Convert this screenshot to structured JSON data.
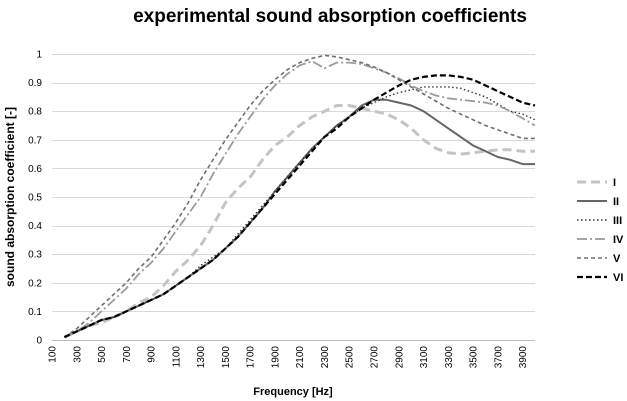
{
  "chart_data": {
    "type": "line",
    "title": "experimental sound absorption coefficients",
    "xlabel": "Frequency [Hz]",
    "ylabel": "sound absorption coefficient [-]",
    "xlim": [
      100,
      4000
    ],
    "ylim": [
      0,
      1
    ],
    "x_ticks": [
      100,
      300,
      500,
      700,
      900,
      1100,
      1300,
      1500,
      1700,
      1900,
      2100,
      2300,
      2500,
      2700,
      2900,
      3100,
      3300,
      3500,
      3700,
      3900
    ],
    "x_tick_labels": [
      "100",
      "300",
      "500",
      "700",
      "900",
      "1100",
      "1300",
      "1500",
      "1700",
      "1900",
      "2100",
      "2300",
      "2500",
      "2700",
      "2900",
      "3100",
      "3300",
      "3500",
      "3700",
      "3900"
    ],
    "y_ticks": [
      0,
      0.1,
      0.2,
      0.3,
      0.4,
      0.5,
      0.6,
      0.7,
      0.8,
      0.9,
      1
    ],
    "y_tick_labels": [
      "0",
      "0.1",
      "0.2",
      "0.3",
      "0.4",
      "0.5",
      "0.6",
      "0.7",
      "0.8",
      "0.9",
      "1"
    ],
    "grid": "horizontal",
    "legend_position": "right",
    "series": [
      {
        "name": "I",
        "color": "#c4c4c4",
        "dash": "9,5",
        "width": 3,
        "points": [
          [
            200,
            0.01
          ],
          [
            300,
            0.03
          ],
          [
            400,
            0.05
          ],
          [
            500,
            0.06
          ],
          [
            600,
            0.08
          ],
          [
            700,
            0.1
          ],
          [
            800,
            0.13
          ],
          [
            900,
            0.15
          ],
          [
            1000,
            0.19
          ],
          [
            1100,
            0.24
          ],
          [
            1200,
            0.28
          ],
          [
            1300,
            0.33
          ],
          [
            1400,
            0.4
          ],
          [
            1500,
            0.48
          ],
          [
            1600,
            0.53
          ],
          [
            1700,
            0.57
          ],
          [
            1800,
            0.63
          ],
          [
            1900,
            0.68
          ],
          [
            2000,
            0.71
          ],
          [
            2100,
            0.75
          ],
          [
            2200,
            0.78
          ],
          [
            2300,
            0.8
          ],
          [
            2400,
            0.82
          ],
          [
            2500,
            0.82
          ],
          [
            2600,
            0.81
          ],
          [
            2700,
            0.8
          ],
          [
            2800,
            0.79
          ],
          [
            2900,
            0.77
          ],
          [
            3000,
            0.74
          ],
          [
            3100,
            0.7
          ],
          [
            3200,
            0.67
          ],
          [
            3300,
            0.655
          ],
          [
            3400,
            0.65
          ],
          [
            3500,
            0.655
          ],
          [
            3600,
            0.66
          ],
          [
            3700,
            0.665
          ],
          [
            3800,
            0.665
          ],
          [
            3900,
            0.66
          ],
          [
            4000,
            0.66
          ]
        ]
      },
      {
        "name": "II",
        "color": "#666666",
        "dash": "",
        "width": 2,
        "points": [
          [
            200,
            0.01
          ],
          [
            300,
            0.03
          ],
          [
            400,
            0.05
          ],
          [
            500,
            0.07
          ],
          [
            600,
            0.08
          ],
          [
            700,
            0.1
          ],
          [
            800,
            0.12
          ],
          [
            900,
            0.14
          ],
          [
            1000,
            0.16
          ],
          [
            1100,
            0.19
          ],
          [
            1200,
            0.22
          ],
          [
            1300,
            0.25
          ],
          [
            1400,
            0.28
          ],
          [
            1500,
            0.32
          ],
          [
            1600,
            0.36
          ],
          [
            1700,
            0.41
          ],
          [
            1800,
            0.46
          ],
          [
            1900,
            0.52
          ],
          [
            2000,
            0.57
          ],
          [
            2100,
            0.62
          ],
          [
            2200,
            0.67
          ],
          [
            2300,
            0.71
          ],
          [
            2400,
            0.75
          ],
          [
            2500,
            0.78
          ],
          [
            2600,
            0.82
          ],
          [
            2700,
            0.84
          ],
          [
            2800,
            0.84
          ],
          [
            2900,
            0.83
          ],
          [
            3000,
            0.82
          ],
          [
            3100,
            0.8
          ],
          [
            3200,
            0.77
          ],
          [
            3300,
            0.74
          ],
          [
            3400,
            0.71
          ],
          [
            3500,
            0.68
          ],
          [
            3600,
            0.66
          ],
          [
            3700,
            0.64
          ],
          [
            3800,
            0.63
          ],
          [
            3900,
            0.615
          ],
          [
            4000,
            0.615
          ]
        ]
      },
      {
        "name": "III",
        "color": "#333333",
        "dash": "1.5,2.5",
        "width": 1.4,
        "points": [
          [
            200,
            0.01
          ],
          [
            300,
            0.03
          ],
          [
            400,
            0.05
          ],
          [
            500,
            0.07
          ],
          [
            600,
            0.08
          ],
          [
            700,
            0.1
          ],
          [
            800,
            0.12
          ],
          [
            900,
            0.14
          ],
          [
            1000,
            0.16
          ],
          [
            1100,
            0.19
          ],
          [
            1200,
            0.22
          ],
          [
            1300,
            0.26
          ],
          [
            1400,
            0.29
          ],
          [
            1500,
            0.32
          ],
          [
            1600,
            0.37
          ],
          [
            1700,
            0.42
          ],
          [
            1800,
            0.47
          ],
          [
            1900,
            0.52
          ],
          [
            2000,
            0.57
          ],
          [
            2100,
            0.62
          ],
          [
            2200,
            0.67
          ],
          [
            2300,
            0.71
          ],
          [
            2400,
            0.75
          ],
          [
            2500,
            0.78
          ],
          [
            2600,
            0.81
          ],
          [
            2700,
            0.83
          ],
          [
            2800,
            0.85
          ],
          [
            2900,
            0.865
          ],
          [
            3000,
            0.875
          ],
          [
            3100,
            0.885
          ],
          [
            3200,
            0.885
          ],
          [
            3300,
            0.885
          ],
          [
            3400,
            0.88
          ],
          [
            3500,
            0.865
          ],
          [
            3600,
            0.85
          ],
          [
            3700,
            0.825
          ],
          [
            3800,
            0.8
          ],
          [
            3900,
            0.79
          ],
          [
            4000,
            0.77
          ]
        ]
      },
      {
        "name": "IV",
        "color": "#9b9b9b",
        "dash": "10,3,2,3",
        "width": 1.8,
        "points": [
          [
            200,
            0.01
          ],
          [
            300,
            0.03
          ],
          [
            400,
            0.06
          ],
          [
            500,
            0.1
          ],
          [
            600,
            0.14
          ],
          [
            700,
            0.18
          ],
          [
            800,
            0.23
          ],
          [
            900,
            0.27
          ],
          [
            1000,
            0.32
          ],
          [
            1100,
            0.38
          ],
          [
            1200,
            0.44
          ],
          [
            1300,
            0.5
          ],
          [
            1400,
            0.58
          ],
          [
            1500,
            0.65
          ],
          [
            1600,
            0.72
          ],
          [
            1700,
            0.78
          ],
          [
            1800,
            0.84
          ],
          [
            1900,
            0.89
          ],
          [
            2000,
            0.93
          ],
          [
            2100,
            0.96
          ],
          [
            2200,
            0.975
          ],
          [
            2300,
            0.95
          ],
          [
            2400,
            0.97
          ],
          [
            2500,
            0.97
          ],
          [
            2600,
            0.965
          ],
          [
            2700,
            0.95
          ],
          [
            2800,
            0.935
          ],
          [
            2900,
            0.915
          ],
          [
            3000,
            0.89
          ],
          [
            3100,
            0.87
          ],
          [
            3200,
            0.855
          ],
          [
            3300,
            0.845
          ],
          [
            3400,
            0.84
          ],
          [
            3500,
            0.835
          ],
          [
            3600,
            0.83
          ],
          [
            3700,
            0.82
          ],
          [
            3800,
            0.8
          ],
          [
            3900,
            0.775
          ],
          [
            4000,
            0.75
          ]
        ]
      },
      {
        "name": "V",
        "color": "#6f6f6f",
        "dash": "4,3",
        "width": 1.6,
        "points": [
          [
            200,
            0.01
          ],
          [
            300,
            0.04
          ],
          [
            400,
            0.08
          ],
          [
            500,
            0.12
          ],
          [
            600,
            0.16
          ],
          [
            700,
            0.2
          ],
          [
            800,
            0.25
          ],
          [
            900,
            0.29
          ],
          [
            1000,
            0.35
          ],
          [
            1100,
            0.41
          ],
          [
            1200,
            0.48
          ],
          [
            1300,
            0.56
          ],
          [
            1400,
            0.63
          ],
          [
            1500,
            0.7
          ],
          [
            1600,
            0.76
          ],
          [
            1700,
            0.82
          ],
          [
            1800,
            0.87
          ],
          [
            1900,
            0.91
          ],
          [
            2000,
            0.945
          ],
          [
            2100,
            0.97
          ],
          [
            2200,
            0.985
          ],
          [
            2300,
            0.995
          ],
          [
            2400,
            0.99
          ],
          [
            2500,
            0.98
          ],
          [
            2600,
            0.97
          ],
          [
            2700,
            0.955
          ],
          [
            2800,
            0.935
          ],
          [
            2900,
            0.91
          ],
          [
            3000,
            0.885
          ],
          [
            3100,
            0.86
          ],
          [
            3200,
            0.835
          ],
          [
            3300,
            0.81
          ],
          [
            3400,
            0.79
          ],
          [
            3500,
            0.77
          ],
          [
            3600,
            0.75
          ],
          [
            3700,
            0.735
          ],
          [
            3800,
            0.72
          ],
          [
            3900,
            0.705
          ],
          [
            4000,
            0.705
          ]
        ]
      },
      {
        "name": "VI",
        "color": "#000000",
        "dash": "6,3",
        "width": 2.2,
        "points": [
          [
            200,
            0.01
          ],
          [
            300,
            0.03
          ],
          [
            400,
            0.05
          ],
          [
            500,
            0.07
          ],
          [
            600,
            0.08
          ],
          [
            700,
            0.1
          ],
          [
            800,
            0.12
          ],
          [
            900,
            0.14
          ],
          [
            1000,
            0.16
          ],
          [
            1100,
            0.19
          ],
          [
            1200,
            0.22
          ],
          [
            1300,
            0.25
          ],
          [
            1400,
            0.28
          ],
          [
            1500,
            0.32
          ],
          [
            1600,
            0.36
          ],
          [
            1700,
            0.41
          ],
          [
            1800,
            0.46
          ],
          [
            1900,
            0.51
          ],
          [
            2000,
            0.56
          ],
          [
            2100,
            0.61
          ],
          [
            2200,
            0.66
          ],
          [
            2300,
            0.71
          ],
          [
            2400,
            0.74
          ],
          [
            2500,
            0.78
          ],
          [
            2600,
            0.81
          ],
          [
            2700,
            0.84
          ],
          [
            2800,
            0.865
          ],
          [
            2900,
            0.89
          ],
          [
            3000,
            0.91
          ],
          [
            3100,
            0.92
          ],
          [
            3200,
            0.925
          ],
          [
            3300,
            0.925
          ],
          [
            3400,
            0.92
          ],
          [
            3500,
            0.91
          ],
          [
            3600,
            0.89
          ],
          [
            3700,
            0.87
          ],
          [
            3800,
            0.85
          ],
          [
            3900,
            0.83
          ],
          [
            4000,
            0.82
          ]
        ]
      }
    ]
  }
}
